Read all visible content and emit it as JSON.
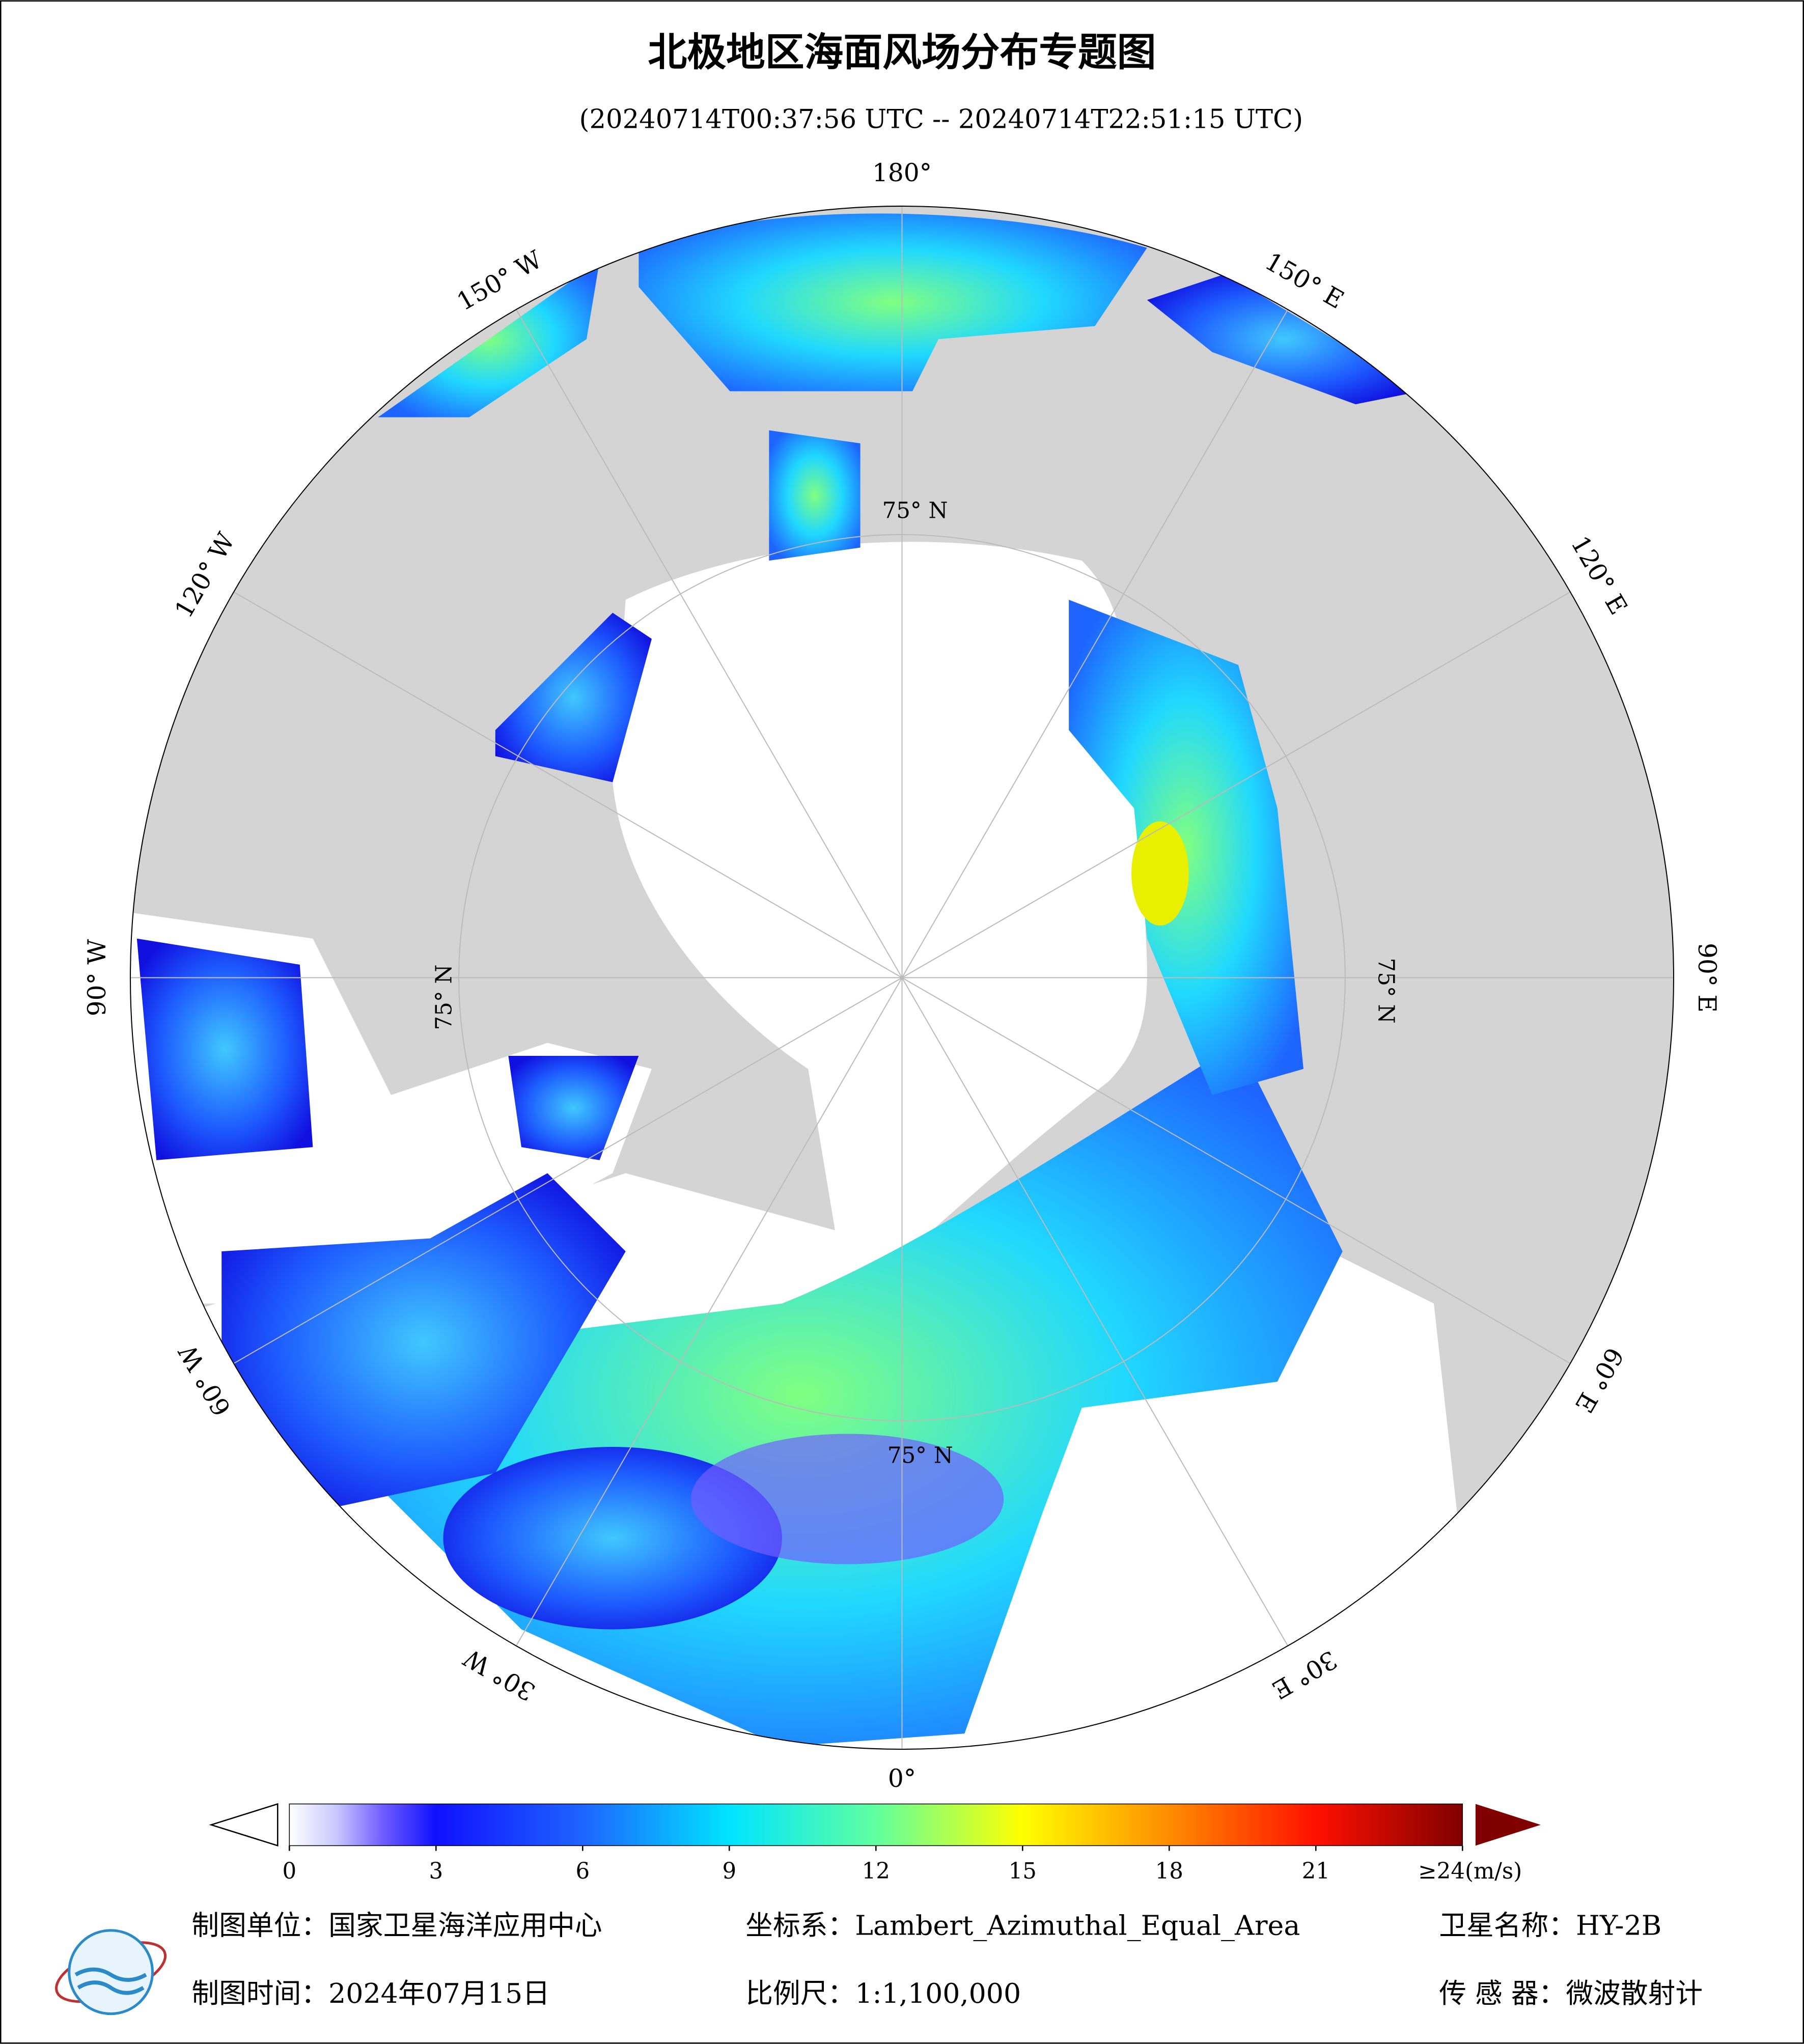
{
  "header": {
    "title": "北极地区海面风场分布专题图",
    "subtitle": "(20240714T00:37:56 UTC -- 20240714T22:51:15 UTC)"
  },
  "map": {
    "longitude_labels": [
      {
        "value": 180,
        "label": "180°"
      },
      {
        "value": 150,
        "label": "150° E"
      },
      {
        "value": 120,
        "label": "120° E"
      },
      {
        "value": 90,
        "label": "90° E"
      },
      {
        "value": 60,
        "label": "60° E"
      },
      {
        "value": 30,
        "label": "30° E"
      },
      {
        "value": 0,
        "label": "0°"
      },
      {
        "value": -30,
        "label": "30° W"
      },
      {
        "value": -60,
        "label": "60° W"
      },
      {
        "value": -90,
        "label": "90° W"
      },
      {
        "value": -120,
        "label": "120° W"
      },
      {
        "value": -150,
        "label": "150° W"
      }
    ],
    "latitude_labels": [
      "75° N",
      "75° N",
      "75° N",
      "75° N"
    ]
  },
  "colorbar": {
    "range": [
      0,
      24
    ],
    "ticks": [
      0,
      3,
      6,
      9,
      12,
      15,
      18,
      21,
      {
        "value": 24,
        "label": "≥24(m/s)"
      }
    ]
  },
  "footer": {
    "unit": "制图单位：国家卫星海洋应用中心",
    "projection": "坐标系：Lambert_Azimuthal_Equal_Area",
    "satellite": "卫星名称：HY-2B",
    "date": "制图时间：2024年07月15日",
    "scale": "比例尺：1:1,100,000",
    "sensor": "传 感 器：微波散射计"
  }
}
